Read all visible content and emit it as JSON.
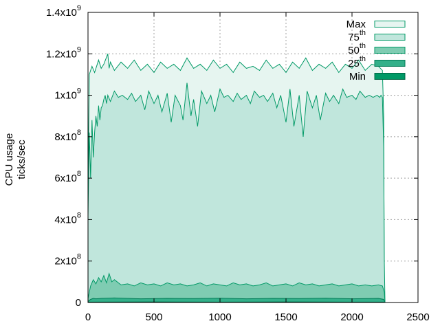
{
  "chart_data": {
    "type": "area",
    "ylabel": [
      "CPU usage",
      "ticks/sec"
    ],
    "xlim": [
      0,
      2500
    ],
    "ylim": [
      0,
      1400000000
    ],
    "x_ticks": [
      {
        "value": 0,
        "label": "0"
      },
      {
        "value": 500,
        "label": "500"
      },
      {
        "value": 1000,
        "label": "1000"
      },
      {
        "value": 1500,
        "label": "1500"
      },
      {
        "value": 2000,
        "label": "2000"
      },
      {
        "value": 2500,
        "label": "2500"
      }
    ],
    "y_ticks": [
      {
        "value": 0,
        "mant": "0",
        "exp": ""
      },
      {
        "value": 200000000,
        "mant": "2x10",
        "exp": "8"
      },
      {
        "value": 400000000,
        "mant": "4x10",
        "exp": "8"
      },
      {
        "value": 600000000,
        "mant": "6x10",
        "exp": "8"
      },
      {
        "value": 800000000,
        "mant": "8x10",
        "exp": "8"
      },
      {
        "value": 1000000000,
        "mant": "1x10",
        "exp": "9"
      },
      {
        "value": 1200000000,
        "mant": "1.2x10",
        "exp": "9"
      },
      {
        "value": 1400000000,
        "mant": "1.4x10",
        "exp": "9"
      }
    ],
    "grid": true,
    "legend_position": "top-right",
    "series": [
      {
        "name": "Max",
        "sup": "",
        "color": "#e6f5f0",
        "edge": "#009966",
        "x": [
          0,
          10,
          20,
          30,
          50,
          80,
          100,
          120,
          150,
          160,
          170,
          200,
          250,
          300,
          350,
          400,
          450,
          500,
          550,
          600,
          650,
          700,
          750,
          800,
          850,
          900,
          950,
          1000,
          1050,
          1100,
          1150,
          1200,
          1250,
          1300,
          1350,
          1400,
          1450,
          1500,
          1550,
          1600,
          1650,
          1700,
          1750,
          1800,
          1850,
          1900,
          1950,
          2000,
          2050,
          2100,
          2150,
          2200,
          2230,
          2240,
          2245,
          2250
        ],
        "y": [
          540000000,
          1100000000,
          1120000000,
          1140000000,
          1110000000,
          1170000000,
          1130000000,
          1150000000,
          1200000000,
          1130000000,
          1160000000,
          1120000000,
          1160000000,
          1130000000,
          1170000000,
          1120000000,
          1150000000,
          1110000000,
          1160000000,
          1130000000,
          1150000000,
          1120000000,
          1180000000,
          1130000000,
          1150000000,
          1120000000,
          1170000000,
          1130000000,
          1150000000,
          1110000000,
          1160000000,
          1130000000,
          1140000000,
          1120000000,
          1170000000,
          1130000000,
          1150000000,
          1110000000,
          1160000000,
          1130000000,
          1180000000,
          1120000000,
          1150000000,
          1130000000,
          1160000000,
          1110000000,
          1150000000,
          1130000000,
          1170000000,
          1120000000,
          1150000000,
          1140000000,
          1120000000,
          900000000,
          30000000,
          0
        ]
      },
      {
        "name": "75",
        "sup": "th",
        "color": "#c0e6dc",
        "edge": "#009966",
        "x": [
          0,
          10,
          20,
          30,
          40,
          50,
          60,
          70,
          80,
          90,
          100,
          110,
          120,
          130,
          140,
          150,
          170,
          200,
          230,
          260,
          300,
          330,
          360,
          400,
          430,
          460,
          500,
          530,
          560,
          600,
          630,
          660,
          700,
          720,
          750,
          780,
          800,
          830,
          860,
          900,
          930,
          960,
          1000,
          1030,
          1060,
          1100,
          1130,
          1160,
          1200,
          1230,
          1260,
          1300,
          1330,
          1360,
          1400,
          1430,
          1460,
          1500,
          1530,
          1560,
          1600,
          1630,
          1660,
          1700,
          1730,
          1760,
          1800,
          1830,
          1860,
          1900,
          1930,
          1960,
          2000,
          2030,
          2060,
          2100,
          2130,
          2160,
          2190,
          2210,
          2220,
          2230,
          2240,
          2245,
          2250
        ],
        "y": [
          420000000,
          820000000,
          600000000,
          880000000,
          700000000,
          820000000,
          900000000,
          850000000,
          950000000,
          880000000,
          940000000,
          950000000,
          980000000,
          1000000000,
          960000000,
          1000000000,
          970000000,
          1020000000,
          990000000,
          1000000000,
          980000000,
          1010000000,
          970000000,
          1000000000,
          930000000,
          1020000000,
          960000000,
          1000000000,
          920000000,
          1010000000,
          870000000,
          1000000000,
          950000000,
          880000000,
          1060000000,
          900000000,
          980000000,
          850000000,
          1020000000,
          960000000,
          1000000000,
          920000000,
          1030000000,
          990000000,
          1000000000,
          970000000,
          1010000000,
          980000000,
          1000000000,
          960000000,
          1020000000,
          990000000,
          1000000000,
          970000000,
          1010000000,
          940000000,
          1000000000,
          870000000,
          1030000000,
          850000000,
          1000000000,
          800000000,
          1020000000,
          940000000,
          1000000000,
          880000000,
          1010000000,
          970000000,
          1000000000,
          960000000,
          1030000000,
          990000000,
          1000000000,
          980000000,
          1020000000,
          990000000,
          1000000000,
          990000000,
          1000000000,
          990000000,
          1000000000,
          990000000,
          750000000,
          200000000,
          0
        ]
      },
      {
        "name": "50",
        "sup": "th",
        "color": "#7fccb2",
        "edge": "#009966",
        "x": [
          0,
          20,
          40,
          60,
          80,
          100,
          120,
          140,
          160,
          180,
          200,
          250,
          300,
          350,
          400,
          450,
          500,
          550,
          600,
          650,
          700,
          750,
          800,
          850,
          900,
          950,
          1000,
          1050,
          1100,
          1150,
          1200,
          1250,
          1300,
          1350,
          1400,
          1450,
          1500,
          1550,
          1600,
          1650,
          1700,
          1750,
          1800,
          1850,
          1900,
          1950,
          2000,
          2050,
          2100,
          2150,
          2200,
          2230,
          2245,
          2250
        ],
        "y": [
          20000000,
          80000000,
          110000000,
          90000000,
          120000000,
          100000000,
          130000000,
          95000000,
          140000000,
          100000000,
          110000000,
          85000000,
          90000000,
          80000000,
          95000000,
          85000000,
          90000000,
          80000000,
          95000000,
          85000000,
          90000000,
          80000000,
          85000000,
          95000000,
          80000000,
          90000000,
          85000000,
          80000000,
          95000000,
          85000000,
          90000000,
          80000000,
          85000000,
          95000000,
          80000000,
          85000000,
          90000000,
          80000000,
          95000000,
          85000000,
          90000000,
          80000000,
          85000000,
          90000000,
          80000000,
          85000000,
          90000000,
          80000000,
          85000000,
          80000000,
          85000000,
          80000000,
          50000000,
          0
        ]
      },
      {
        "name": "25",
        "sup": "th",
        "color": "#33b08a",
        "edge": "#007a55",
        "x": [
          0,
          20,
          40,
          60,
          100,
          200,
          400,
          600,
          800,
          1000,
          1200,
          1400,
          1600,
          1800,
          2000,
          2200,
          2240,
          2250
        ],
        "y": [
          5000000,
          15000000,
          20000000,
          18000000,
          20000000,
          22000000,
          18000000,
          20000000,
          19000000,
          21000000,
          18000000,
          20000000,
          19000000,
          21000000,
          18000000,
          20000000,
          15000000,
          0
        ]
      },
      {
        "name": "Min",
        "sup": "",
        "color": "#009966",
        "edge": "#006644",
        "x": [
          0,
          500,
          1000,
          1500,
          2000,
          2240,
          2250
        ],
        "y": [
          2000000,
          3000000,
          2000000,
          3000000,
          2000000,
          2000000,
          0
        ]
      }
    ]
  }
}
